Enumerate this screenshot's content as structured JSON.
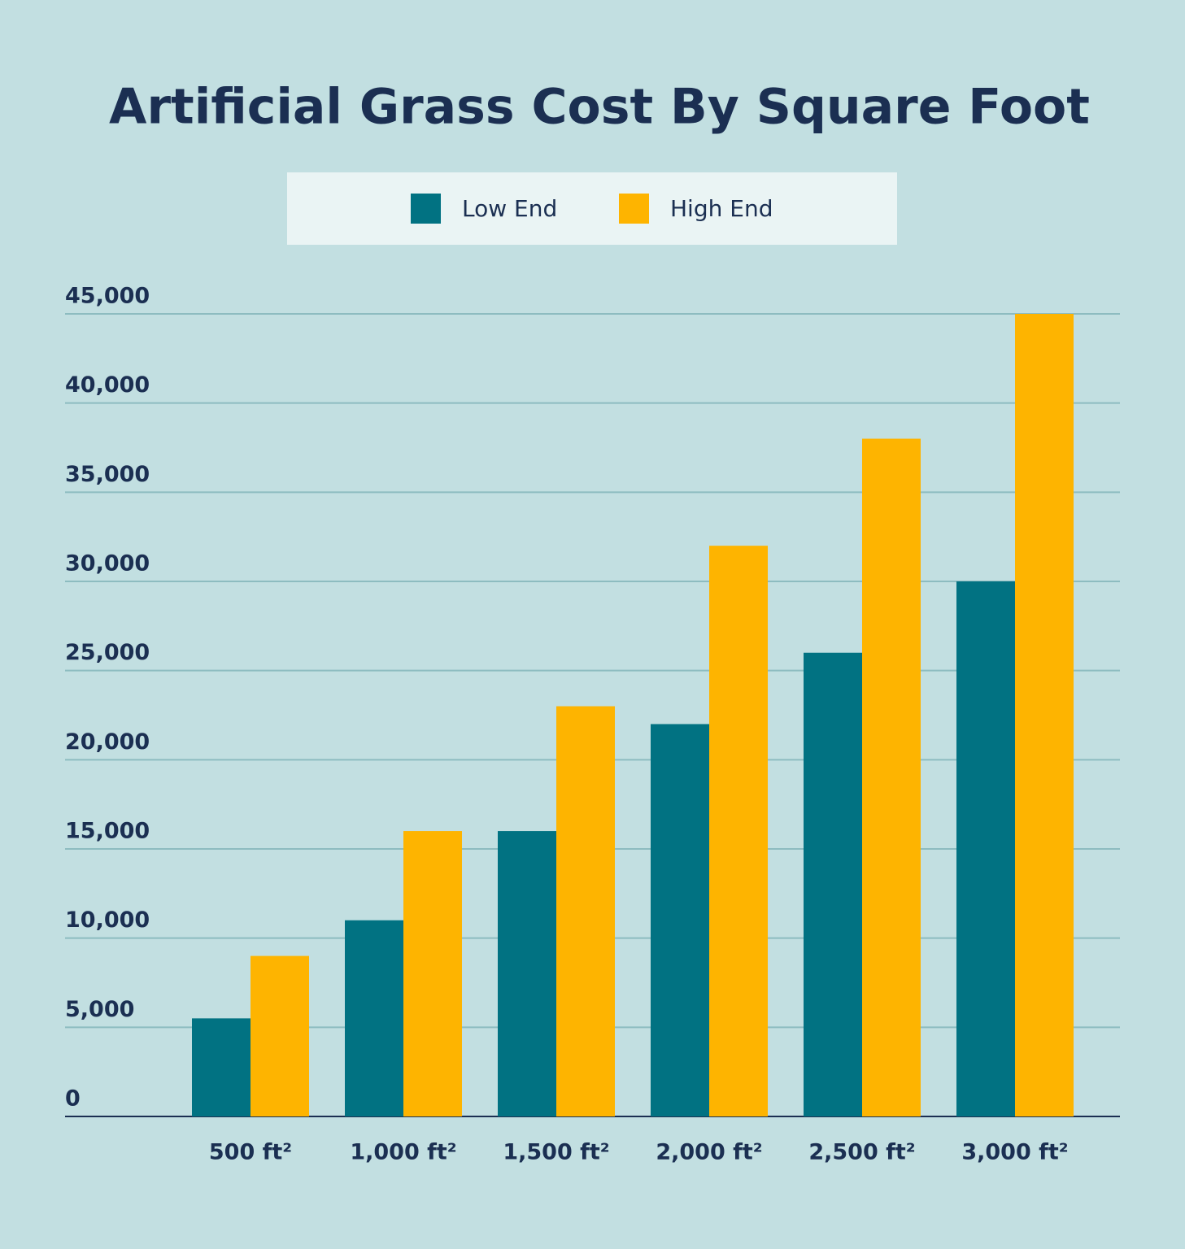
{
  "chart_data": {
    "type": "grouped_bar",
    "title": "Artificial Grass Cost By Square Foot",
    "categories": [
      "500 ft²",
      "1,000 ft²",
      "1,500 ft²",
      "2,000 ft²",
      "2,500 ft²",
      "3,000 ft²"
    ],
    "series": [
      {
        "name": "Low End",
        "color": "#017282",
        "values": [
          5500,
          11000,
          16000,
          22000,
          26000,
          30000
        ]
      },
      {
        "name": "High End",
        "color": "#feb400",
        "values": [
          9000,
          16000,
          23000,
          32000,
          38000,
          45000
        ]
      }
    ],
    "ylim": [
      0,
      45000
    ],
    "yticks": [
      0,
      {
        "value": 5000,
        "label": "5,000"
      },
      {
        "value": 10000,
        "label": "10,000"
      },
      {
        "value": 15000,
        "label": "15,000"
      },
      {
        "value": 20000,
        "label": "20,000"
      },
      {
        "value": 25000,
        "label": "25,000"
      },
      {
        "value": 30000,
        "label": "30,000"
      },
      {
        "value": 35000,
        "label": "35,000"
      },
      {
        "value": 40000,
        "label": "40,000"
      },
      {
        "value": 45000,
        "label": "45,000"
      }
    ],
    "grid": true
  }
}
